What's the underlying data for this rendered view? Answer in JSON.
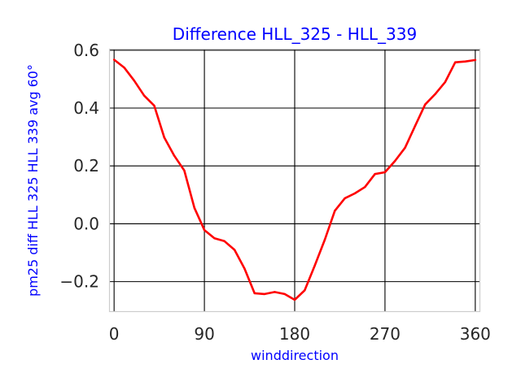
{
  "chart_data": {
    "type": "line",
    "title": "Difference HLL_325 - HLL_339",
    "xlabel": "winddirection",
    "ylabel": "pm25 diff HLL 325 HLL 339 avg 60°",
    "xlim": [
      -5,
      365
    ],
    "ylim": [
      -0.305,
      0.605
    ],
    "xticks": [
      0,
      90,
      180,
      270,
      360
    ],
    "yticks": [
      -0.2,
      0.0,
      0.2,
      0.4,
      0.6
    ],
    "ytick_labels": [
      "−0.2",
      "0.0",
      "0.2",
      "0.4",
      "0.6"
    ],
    "grid": true,
    "series": [
      {
        "color": "#ff0000",
        "x": [
          0,
          10,
          20,
          30,
          40,
          50,
          60,
          70,
          80,
          90,
          100,
          110,
          120,
          130,
          140,
          150,
          160,
          170,
          180,
          190,
          200,
          210,
          220,
          230,
          240,
          250,
          260,
          270,
          280,
          290,
          300,
          310,
          320,
          330,
          340,
          350,
          360
        ],
        "y": [
          0.567,
          0.54,
          0.495,
          0.443,
          0.408,
          0.298,
          0.235,
          0.184,
          0.055,
          -0.022,
          -0.05,
          -0.06,
          -0.09,
          -0.155,
          -0.24,
          -0.243,
          -0.236,
          -0.243,
          -0.263,
          -0.23,
          -0.145,
          -0.055,
          0.045,
          0.088,
          0.105,
          0.127,
          0.172,
          0.178,
          0.217,
          0.263,
          0.338,
          0.412,
          0.448,
          0.49,
          0.558,
          0.561,
          0.566
        ]
      }
    ]
  }
}
